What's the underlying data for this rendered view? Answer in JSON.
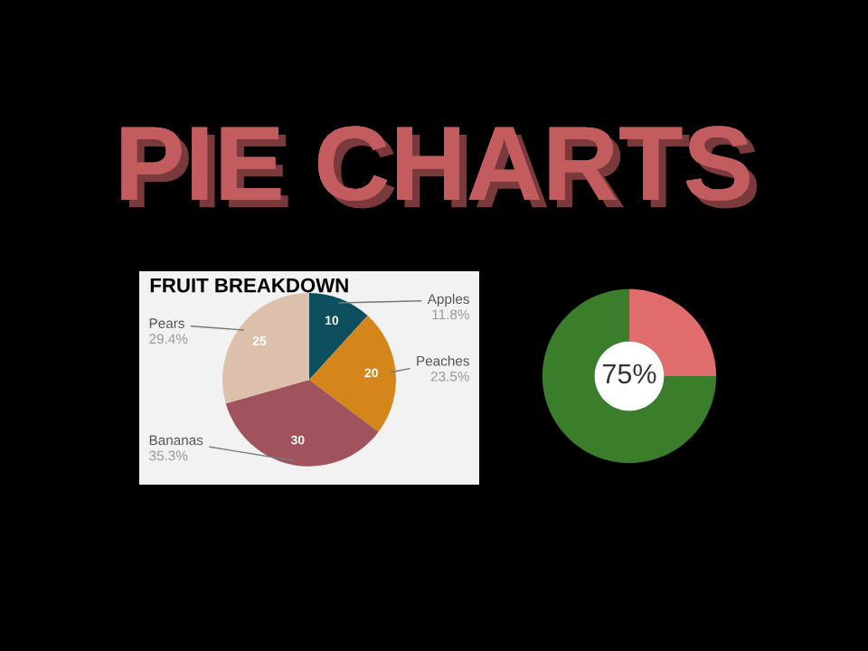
{
  "chart_data": [
    {
      "type": "pie",
      "title": "FRUIT BREAKDOWN",
      "annotations": [
        "PIE CHARTS",
        {
          "text": "11.8%",
          "x": "Apples"
        },
        {
          "text": "23.5%",
          "x": "Peaches"
        },
        {
          "text": "35.3%",
          "x": "Bananas"
        },
        {
          "text": "29.4%",
          "x": "Pears"
        }
      ],
      "categories": [
        "Apples",
        "Peaches",
        "Bananas",
        "Pears"
      ],
      "values": [
        10,
        20,
        30,
        25
      ],
      "colors": [
        "#0d4f5c",
        "#d4861a",
        "#a0535c",
        "#dcc0ac"
      ],
      "data_labels": true
    },
    {
      "type": "donut",
      "categories": [
        null,
        null
      ],
      "values": [
        25,
        75
      ],
      "colors": [
        "#e06c6c",
        "#3a7d2a"
      ],
      "annotations": [
        "75%"
      ]
    }
  ]
}
